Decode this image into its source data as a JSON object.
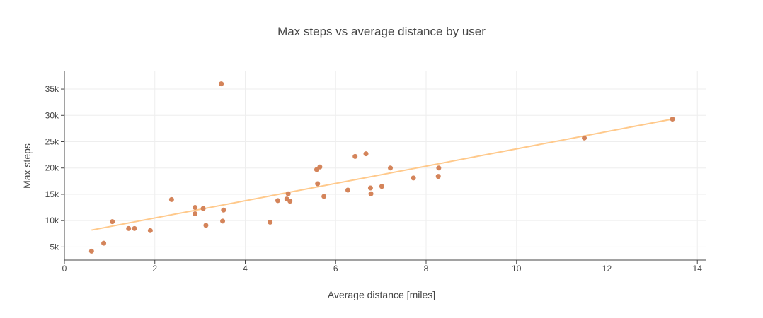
{
  "chart_data": {
    "type": "scatter",
    "title": "Max steps vs average distance by user",
    "xlabel": "Average distance [miles]",
    "ylabel": "Max steps",
    "xlim": [
      0,
      14.2
    ],
    "ylim": [
      2500,
      38500
    ],
    "xticks": [
      0,
      2,
      4,
      6,
      8,
      10,
      12,
      14
    ],
    "xtick_labels": [
      "0",
      "2",
      "4",
      "6",
      "8",
      "10",
      "12",
      "14"
    ],
    "yticks": [
      5000,
      10000,
      15000,
      20000,
      25000,
      30000,
      35000
    ],
    "ytick_labels": [
      "5k",
      "10k",
      "15k",
      "20k",
      "25k",
      "30k",
      "35k"
    ],
    "grid": true,
    "legend": false,
    "marker_color": "#d4845a",
    "trend_color": "#ffc98b",
    "points": [
      {
        "x": 0.6,
        "y": 4200
      },
      {
        "x": 0.87,
        "y": 5700
      },
      {
        "x": 1.06,
        "y": 9800
      },
      {
        "x": 1.42,
        "y": 8500
      },
      {
        "x": 1.55,
        "y": 8500
      },
      {
        "x": 1.9,
        "y": 8100
      },
      {
        "x": 2.37,
        "y": 14000
      },
      {
        "x": 2.89,
        "y": 12500
      },
      {
        "x": 2.89,
        "y": 11300
      },
      {
        "x": 3.07,
        "y": 12300
      },
      {
        "x": 3.13,
        "y": 9100
      },
      {
        "x": 3.47,
        "y": 36000
      },
      {
        "x": 3.5,
        "y": 9900
      },
      {
        "x": 3.52,
        "y": 12000
      },
      {
        "x": 4.55,
        "y": 9700
      },
      {
        "x": 4.72,
        "y": 13800
      },
      {
        "x": 4.92,
        "y": 14100
      },
      {
        "x": 4.95,
        "y": 15100
      },
      {
        "x": 4.99,
        "y": 13700
      },
      {
        "x": 5.58,
        "y": 19700
      },
      {
        "x": 5.6,
        "y": 17000
      },
      {
        "x": 5.65,
        "y": 20200
      },
      {
        "x": 5.74,
        "y": 14600
      },
      {
        "x": 6.27,
        "y": 15800
      },
      {
        "x": 6.43,
        "y": 22200
      },
      {
        "x": 6.67,
        "y": 22700
      },
      {
        "x": 6.77,
        "y": 16200
      },
      {
        "x": 6.78,
        "y": 15100
      },
      {
        "x": 7.02,
        "y": 16500
      },
      {
        "x": 7.21,
        "y": 20000
      },
      {
        "x": 7.72,
        "y": 18100
      },
      {
        "x": 8.27,
        "y": 18400
      },
      {
        "x": 8.28,
        "y": 20000
      },
      {
        "x": 11.5,
        "y": 25700
      },
      {
        "x": 13.45,
        "y": 29300
      }
    ],
    "trendline": {
      "x": [
        0.6,
        13.45
      ],
      "y": [
        8200,
        29300
      ]
    }
  }
}
